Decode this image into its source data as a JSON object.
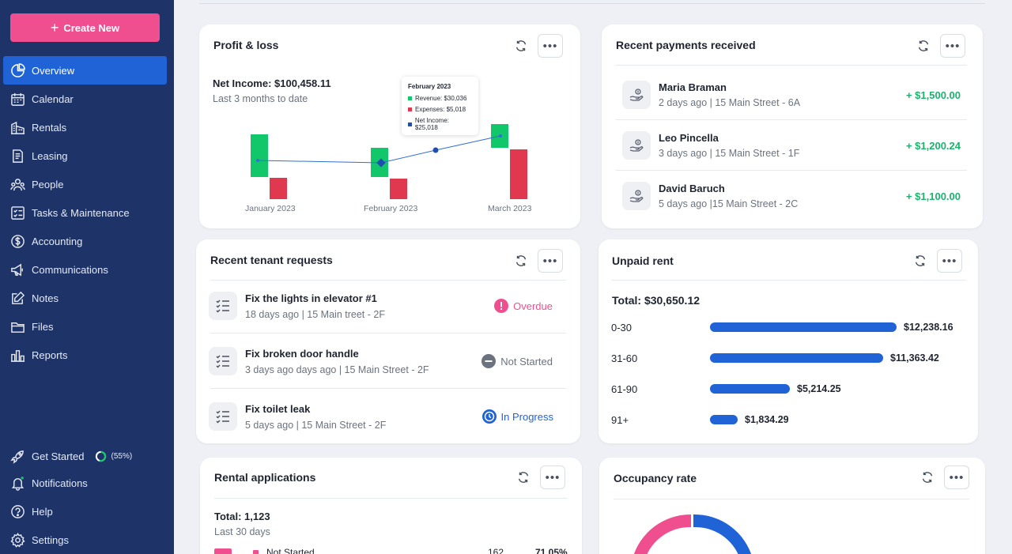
{
  "sidebar": {
    "create_label": "Create New",
    "items": [
      {
        "label": "Overview"
      },
      {
        "label": "Calendar"
      },
      {
        "label": "Rentals"
      },
      {
        "label": "Leasing"
      },
      {
        "label": "People"
      },
      {
        "label": "Tasks & Maintenance"
      },
      {
        "label": "Accounting"
      },
      {
        "label": "Communications"
      },
      {
        "label": "Notes"
      },
      {
        "label": "Files"
      },
      {
        "label": "Reports"
      }
    ],
    "bottom": {
      "get_started": "Get Started",
      "progress": "(55%)",
      "progress_value": 55,
      "notifications": "Notifications",
      "help": "Help",
      "settings": "Settings"
    }
  },
  "profit_loss": {
    "title": "Profit & loss",
    "net_income": "Net Income: $100,458.11",
    "subtitle": "Last 3 months to date",
    "tooltip": {
      "title": "February 2023",
      "revenue": "Revenue: $30,036",
      "expenses": "Expenses: $5,018",
      "net": "Net Income: $25,018"
    },
    "months": [
      "January 2023",
      "February 2023",
      "March 2023"
    ]
  },
  "payments": {
    "title": "Recent payments received",
    "rows": [
      {
        "name": "Maria Braman",
        "sub": "2 days ago | 15 Main Street - 6A",
        "amount": "+ $1,500.00"
      },
      {
        "name": "Leo Pincella",
        "sub": "3 days ago | 15 Main Street - 1F",
        "amount": "+ $1,200.24"
      },
      {
        "name": "David Baruch",
        "sub": "5 days ago |15 Main Street - 2C",
        "amount": "+ $1,100.00"
      }
    ]
  },
  "requests": {
    "title": "Recent tenant requests",
    "rows": [
      {
        "title": "Fix the lights in elevator #1",
        "sub": "18 days ago | 15 Main treet - 2F",
        "status": "Overdue"
      },
      {
        "title": "Fix broken door handle",
        "sub": "3 days ago days ago | 15 Main Street - 2F",
        "status": "Not Started"
      },
      {
        "title": "Fix toilet leak",
        "sub": "5 days ago | 15 Main Street - 2F",
        "status": "In Progress"
      }
    ]
  },
  "unpaid": {
    "title": "Unpaid rent",
    "total": "Total: $30,650.12",
    "rows": [
      {
        "label": "0-30",
        "value": "$12,238.16",
        "amount": 12238.16
      },
      {
        "label": "31-60",
        "value": "$11,363.42",
        "amount": 11363.42
      },
      {
        "label": "61-90",
        "value": "$5,214.25",
        "amount": 5214.25
      },
      {
        "label": "91+",
        "value": "$1,834.29",
        "amount": 1834.29
      }
    ]
  },
  "applications": {
    "title": "Rental applications",
    "total": "Total: 1,123",
    "subtitle": "Last 30 days",
    "row": {
      "label": "Not Started",
      "count": "162",
      "pct": "71.05%"
    }
  },
  "occupancy": {
    "title": "Occupancy rate"
  },
  "colors": {
    "sidebar": "#1e3368",
    "accent": "#1f63d6",
    "pink": "#f04f8f",
    "green": "#1bb36b",
    "red": "#e0384f",
    "revenue": "#12c76a"
  }
}
